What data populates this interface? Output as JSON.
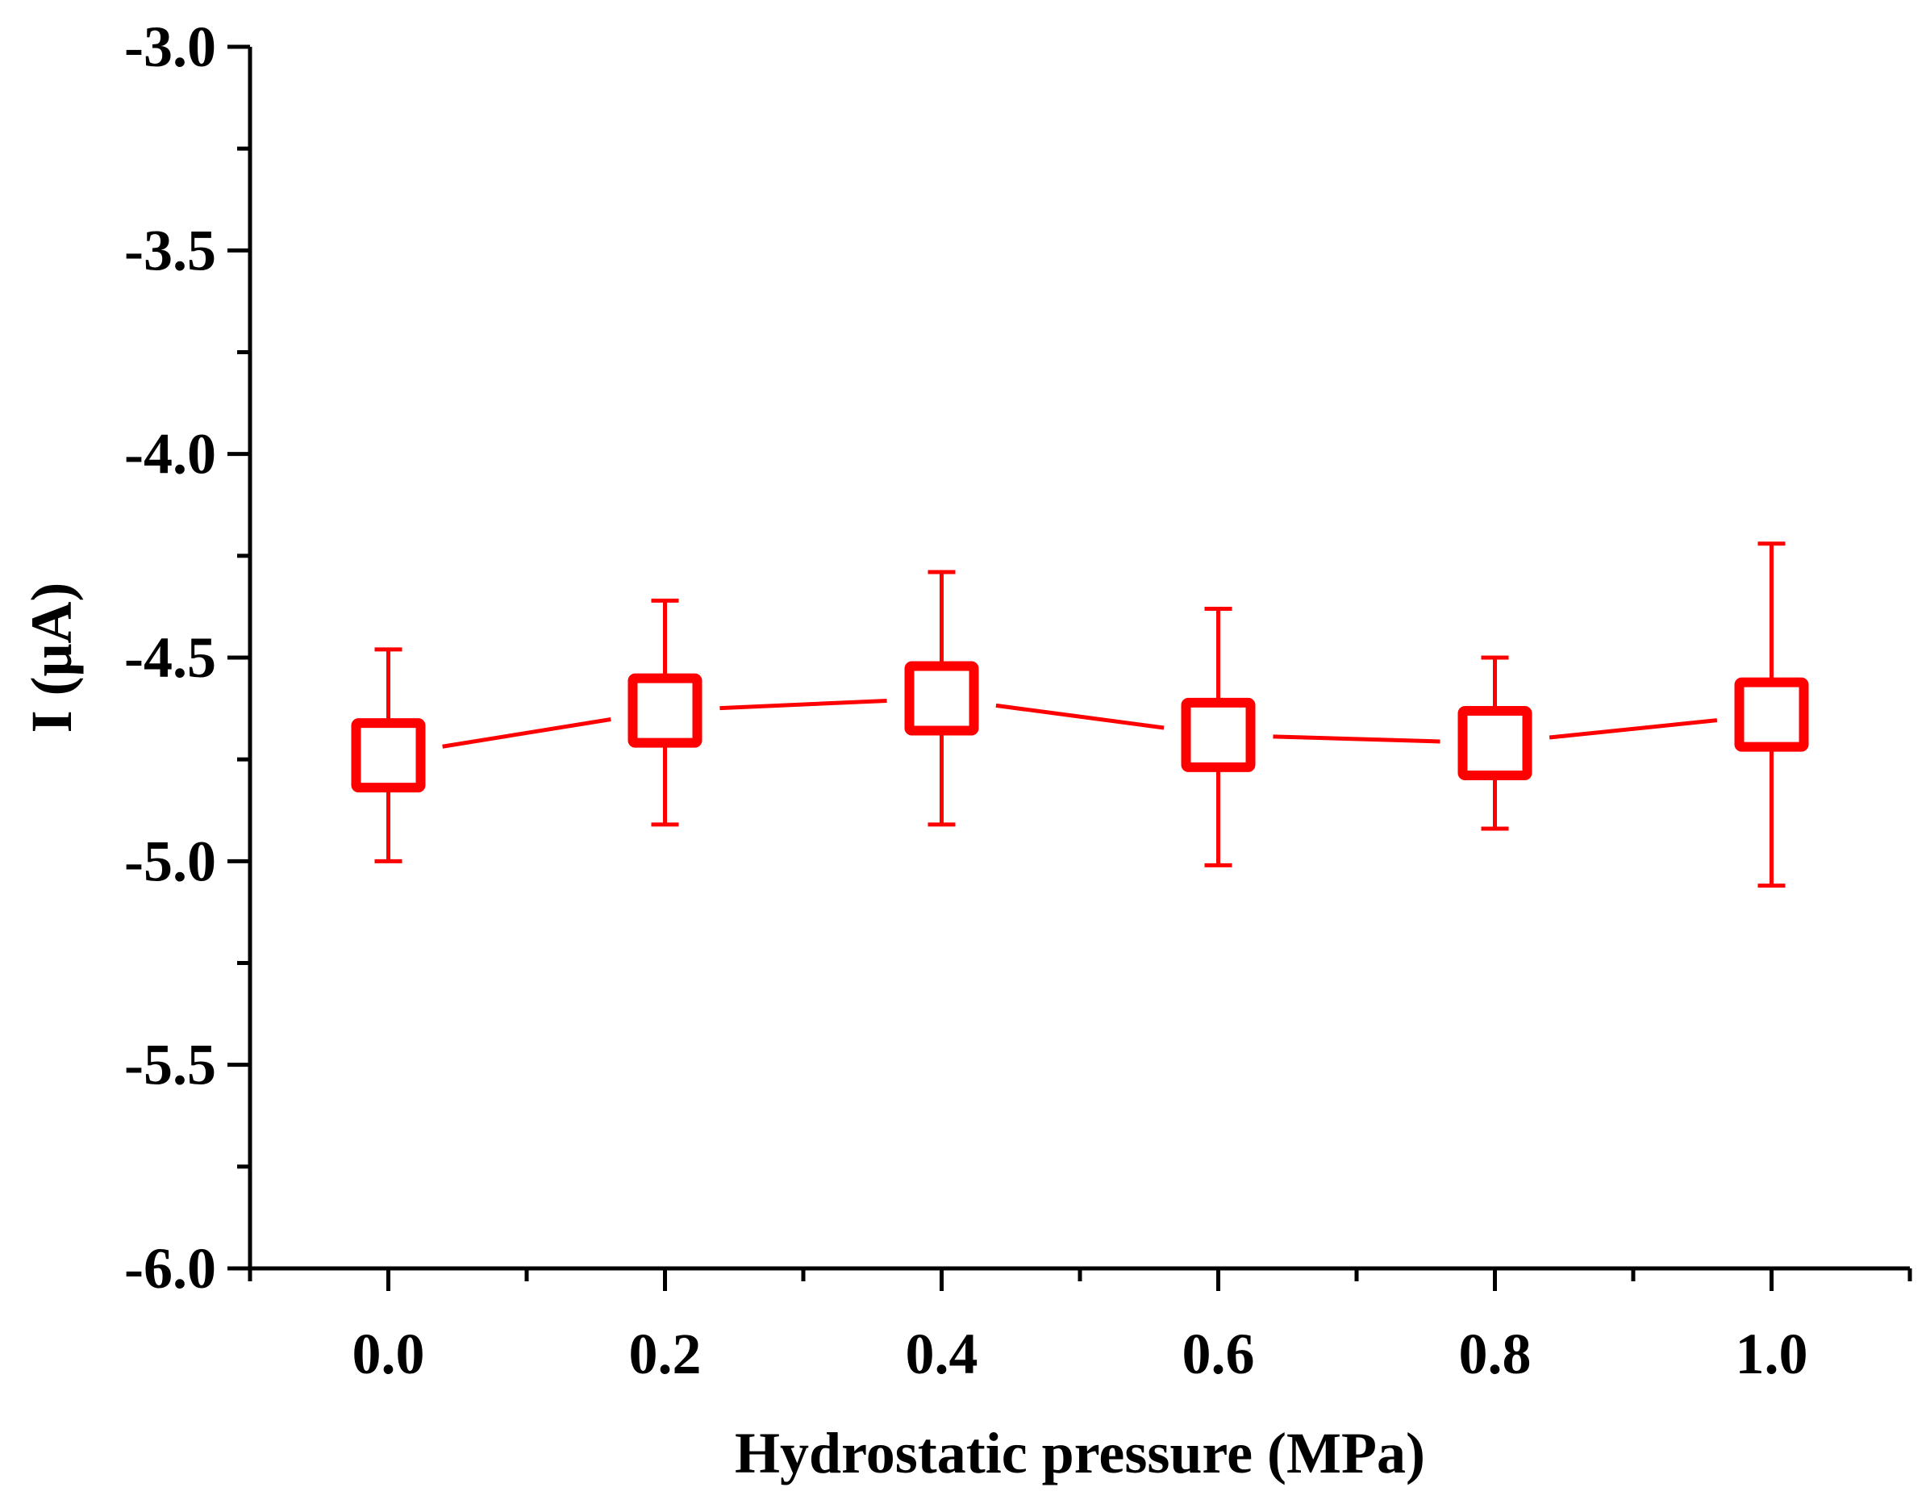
{
  "chart_data": {
    "type": "scatter",
    "title": "",
    "xlabel": "Hydrostatic pressure (MPa)",
    "ylabel": "I (μA)",
    "xlim": [
      -0.1,
      1.1
    ],
    "ylim": [
      -6.0,
      -3.0
    ],
    "x_ticks": [
      0.0,
      0.2,
      0.4,
      0.6,
      0.8,
      1.0
    ],
    "x_tick_labels": [
      "0.0",
      "0.2",
      "0.4",
      "0.6",
      "0.8",
      "1.0"
    ],
    "x_minor_ticks": [
      -0.1,
      0.1,
      0.3,
      0.5,
      0.7,
      0.9,
      1.1
    ],
    "y_ticks": [
      -3.0,
      -3.5,
      -4.0,
      -4.5,
      -5.0,
      -5.5,
      -6.0
    ],
    "y_tick_labels": [
      "-3.0",
      "-3.5",
      "-4.0",
      "-4.5",
      "-5.0",
      "-5.5",
      "-6.0"
    ],
    "y_minor_ticks": [
      -3.25,
      -3.75,
      -4.25,
      -4.75,
      -5.25,
      -5.75
    ],
    "grid": false,
    "series": [
      {
        "name": "I",
        "color": "#ff0000",
        "marker": "open-square",
        "line": true,
        "x": [
          0.0,
          0.2,
          0.4,
          0.6,
          0.8,
          1.0
        ],
        "y": [
          -4.74,
          -4.63,
          -4.6,
          -4.69,
          -4.71,
          -4.64
        ],
        "err_upper": [
          -4.48,
          -4.36,
          -4.29,
          -4.38,
          -4.5,
          -4.22
        ],
        "err_lower": [
          -5.0,
          -4.91,
          -4.91,
          -5.01,
          -4.92,
          -5.06
        ]
      }
    ]
  }
}
